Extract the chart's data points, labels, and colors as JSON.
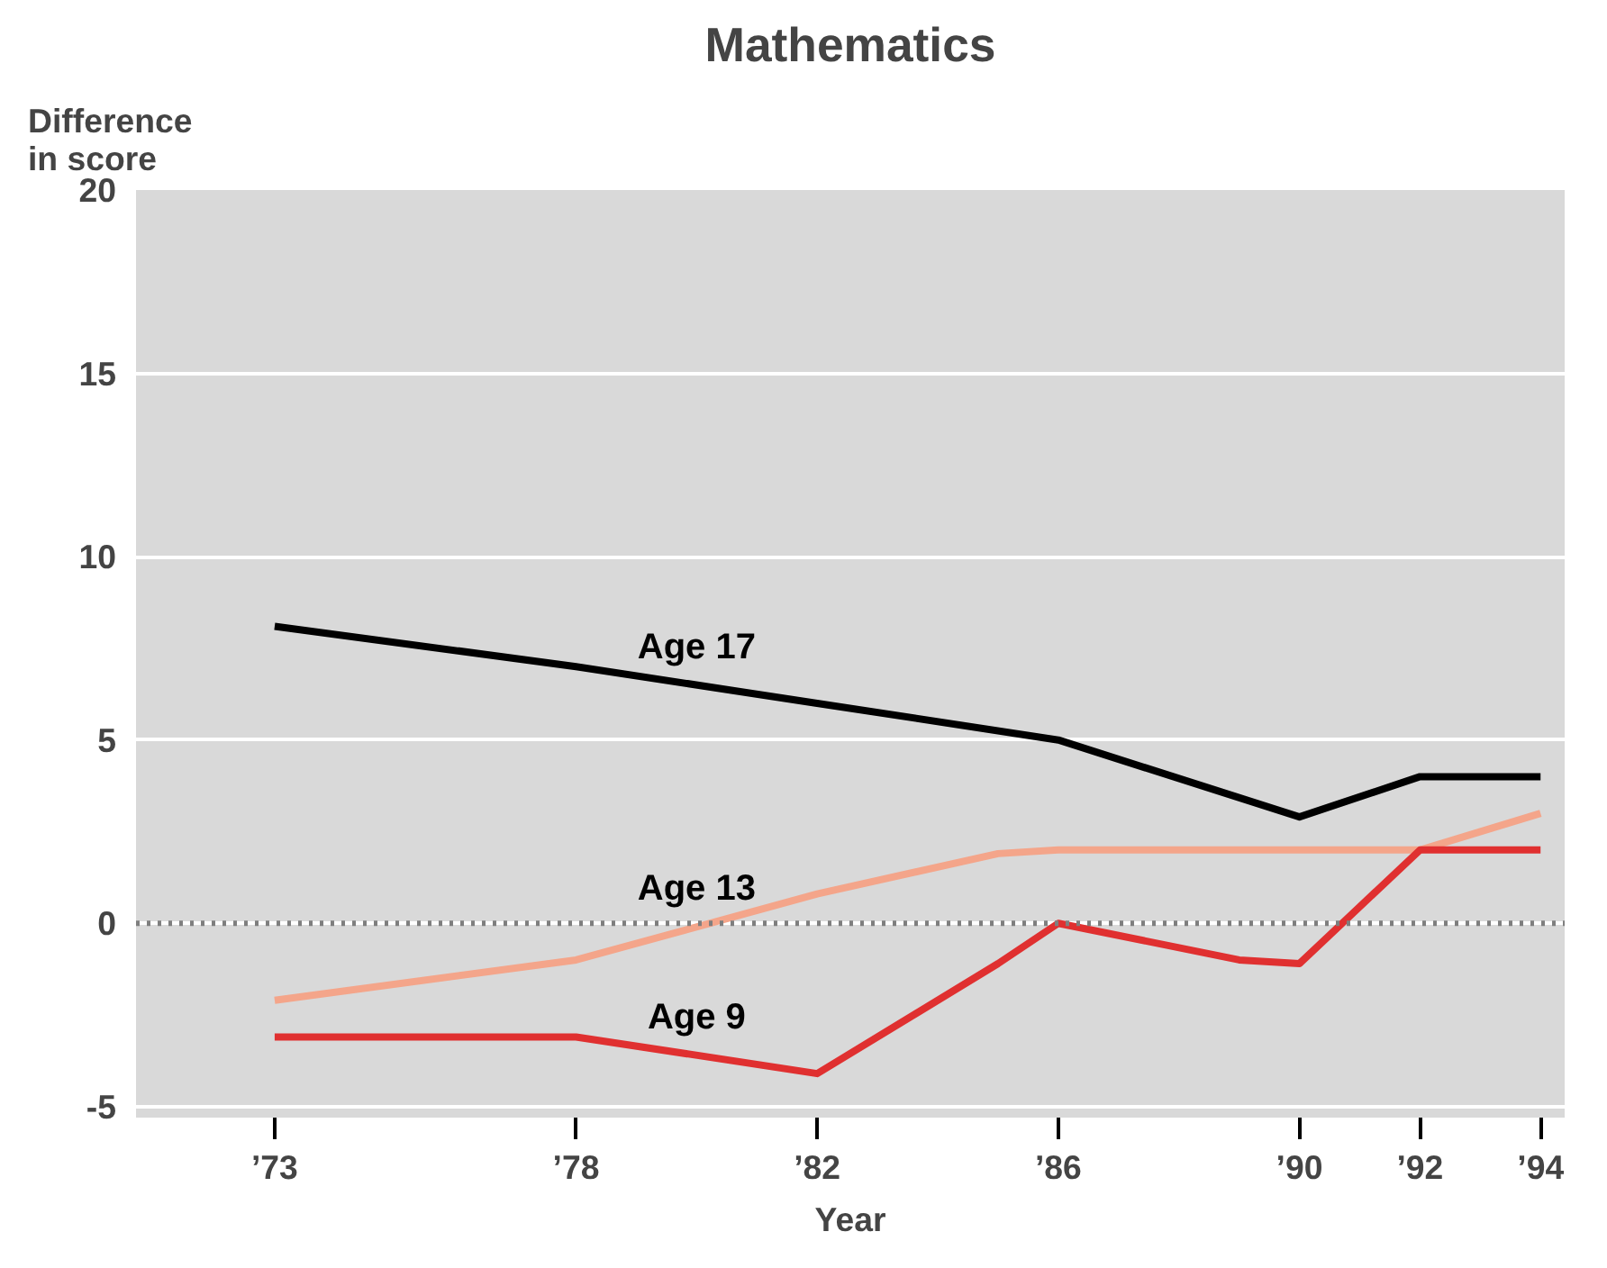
{
  "chart_data": {
    "type": "line",
    "title": "Mathematics",
    "xlabel": "Year",
    "ylabel": "Difference in score",
    "xlim": [
      1970.7,
      1994.4
    ],
    "ylim": [
      -5.3,
      20
    ],
    "xticks": [
      {
        "value": 1973,
        "label": "’73"
      },
      {
        "value": 1978,
        "label": "’78"
      },
      {
        "value": 1982,
        "label": "’82"
      },
      {
        "value": 1986,
        "label": "’86"
      },
      {
        "value": 1990,
        "label": "’90"
      },
      {
        "value": 1992,
        "label": "’92"
      },
      {
        "value": 1994,
        "label": "’94"
      }
    ],
    "yticks": [
      -5,
      0,
      5,
      10,
      15,
      20
    ],
    "grid": "y",
    "marker": "none",
    "line_style": "solid",
    "ref_lines": [
      {
        "axis": "y",
        "value": 0,
        "label": null,
        "color": "#7f7f7f",
        "line_style": "dotted"
      }
    ],
    "series": [
      {
        "name": "Age 17",
        "color": "#000000",
        "x": [
          1973,
          1978,
          1982,
          1986,
          1990,
          1992,
          1994
        ],
        "values": [
          8.1,
          7.0,
          6.0,
          5.0,
          2.9,
          4.0,
          4.0
        ]
      },
      {
        "name": "Age 13",
        "color": "#f4a58a",
        "x": [
          1973,
          1978,
          1982,
          1985,
          1986,
          1990,
          1992,
          1994
        ],
        "values": [
          -2.1,
          -1.0,
          0.8,
          1.9,
          2.0,
          2.0,
          2.0,
          3.0
        ]
      },
      {
        "name": "Age 9",
        "color": "#e03030",
        "x": [
          1973,
          1978,
          1982,
          1985,
          1986,
          1989,
          1990,
          1992,
          1994
        ],
        "values": [
          -3.1,
          -3.1,
          -4.1,
          -1.1,
          0.0,
          -1.0,
          -1.1,
          2.0,
          2.0
        ]
      }
    ]
  }
}
